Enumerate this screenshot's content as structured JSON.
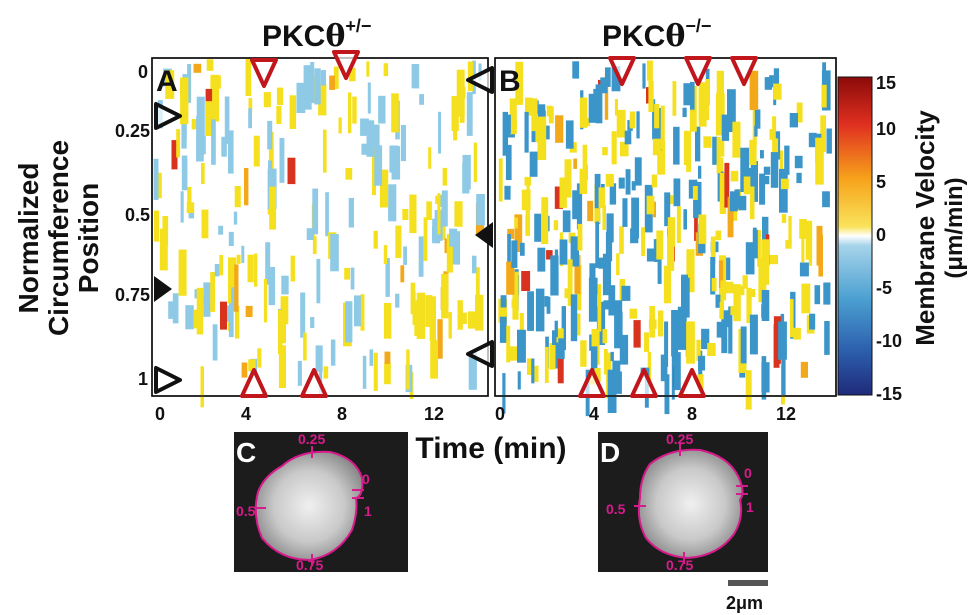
{
  "figure": {
    "panels": {
      "A": {
        "letter": "A",
        "title_base": "PKC",
        "title_greek": "θ",
        "title_sup": "+/−"
      },
      "B": {
        "letter": "B",
        "title_base": "PKC",
        "title_greek": "θ",
        "title_sup": "−/−"
      },
      "C": {
        "letter": "C"
      },
      "D": {
        "letter": "D"
      }
    },
    "y_axis": {
      "label_lines": [
        "Normalized",
        "Circumference",
        "Position"
      ],
      "ticks": [
        "0",
        "0.25",
        "0.5",
        "0.75",
        "1"
      ]
    },
    "x_axis": {
      "label": "Time (min)",
      "ticks_A": [
        "0",
        "4",
        "8",
        "12"
      ],
      "ticks_B": [
        "0",
        "4",
        "8",
        "12"
      ]
    },
    "colorbar": {
      "label_line1": "Membrane Velocity",
      "label_line2": "(μm/min)",
      "ticks": [
        "15",
        "10",
        "5",
        "0",
        "-5",
        "-10",
        "-15"
      ],
      "range": [
        -15,
        15
      ]
    },
    "cell_outline_labels": {
      "C": [
        "0.25",
        "0",
        "1",
        "0.5",
        "0.75"
      ],
      "D": [
        "0.25",
        "0",
        "1",
        "0.5",
        "0.75"
      ]
    },
    "scale_bar": {
      "label": "2μm"
    },
    "colors": {
      "protrusion": "#f5e020",
      "retraction": "#8ecae6",
      "retraction_strong": "#3b95c9",
      "marker_red": "#c0161c",
      "outline": "#d81b8c"
    }
  }
}
